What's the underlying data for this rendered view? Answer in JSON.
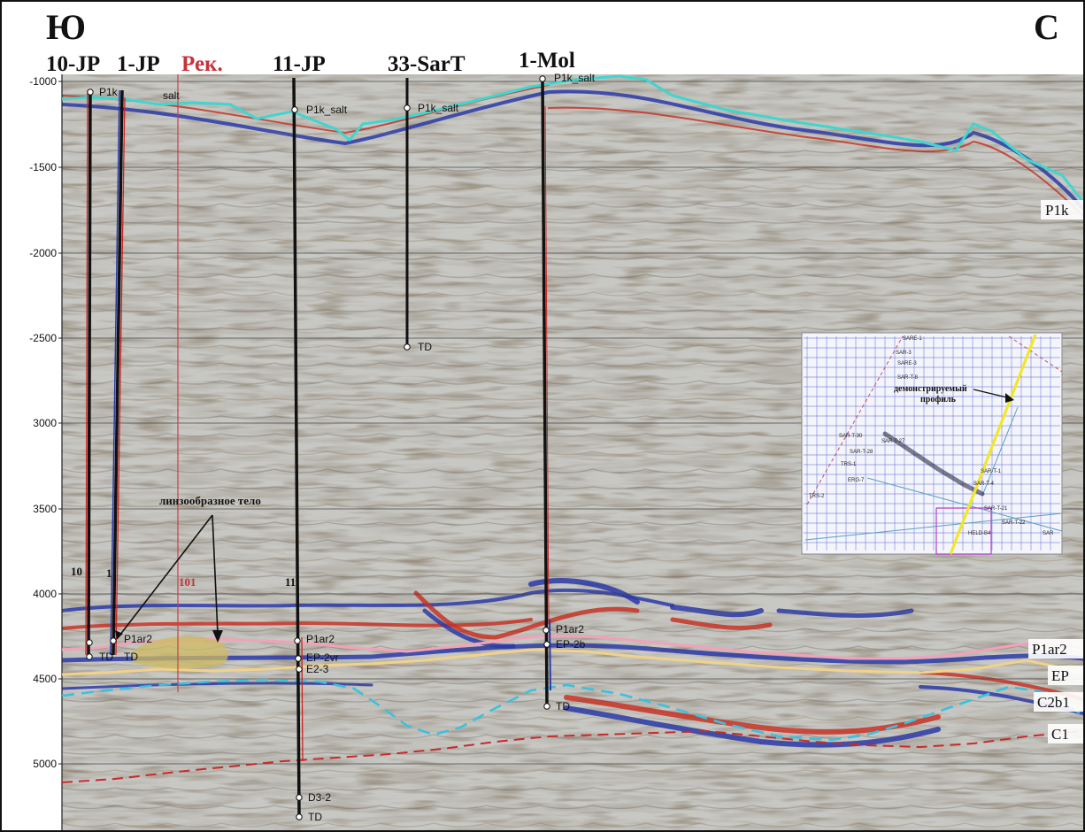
{
  "colors": {
    "seismic_gray": "#b8b8b4",
    "seismic_dark": "#5a5046",
    "seismic_brown": "#8a7048",
    "reflector_blue": "#2a3aa8",
    "reflector_red": "#c83226",
    "salt_horizon": "#3fd6cf",
    "p1ar2_horizon": "#f2a2b8",
    "ep_horizon": "#f2d28a",
    "c2b1_horizon": "#3cc0e0",
    "c1_horizon": "#c82a2a",
    "well_black": "#111111",
    "recommended_well": "#d23c46",
    "inset_grid": "#3246c8",
    "inset_profile": "#f2e628"
  },
  "directions": {
    "south": "Ю",
    "north": "С"
  },
  "wells": [
    {
      "name": "10-JP"
    },
    {
      "name": "1-JP"
    },
    {
      "name": "Рек.",
      "recommended": true
    },
    {
      "name": "11-JP"
    },
    {
      "name": "33-SarT"
    },
    {
      "name": "1-Mol"
    }
  ],
  "depth_ticks": [
    "-1000",
    "-1500",
    "-2000",
    "-2500",
    "3000",
    "3500",
    "4000",
    "4500",
    "5000"
  ],
  "horizons": {
    "p1k": "P1k",
    "p1ar2": "P1ar2",
    "ep": "EP",
    "c2b1": "C2b1",
    "c1": "C1"
  },
  "picks": {
    "p1k_salt": "P1k_salt",
    "p1k_salt_short": "P1k",
    "salt_short": "salt",
    "p1ar2": "P1ar2",
    "ep_2vr": "EP-2vr",
    "ep_2b": "EP-2b",
    "e2_3": "E2-3",
    "d3_2": "D3-2",
    "td": "TD"
  },
  "annotations": {
    "lens_body": "линзообразное тело",
    "well_label_10": "10",
    "well_label_1": "1",
    "well_label_101": "101",
    "well_label_11": "11"
  },
  "inset": {
    "title": "демонстрируемый профиль",
    "labels": [
      "SARE-1",
      "SAR-3",
      "SARE-3",
      "SAR-T-8",
      "SAR-T-30",
      "SAR-T-28",
      "SAR-T-27",
      "TRS-1",
      "ERG-7",
      "TRS-2",
      "SAR-T-1",
      "SAR-T-22",
      "SAR-T-4",
      "SAR-T-21",
      "HELD-B4",
      "SAR"
    ]
  }
}
